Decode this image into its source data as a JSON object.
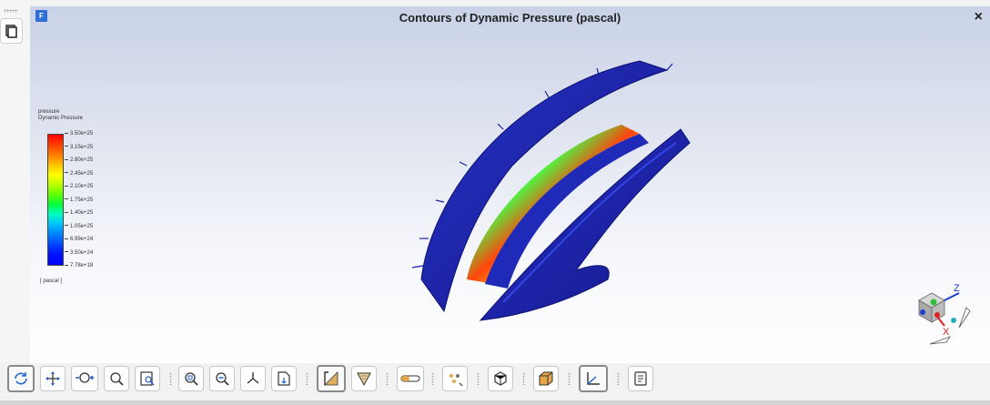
{
  "window": {
    "title": "Contours of Dynamic Pressure (pascal)",
    "app_icon_letter": "F",
    "close_symbol": "×"
  },
  "legend": {
    "variable": "pressure",
    "description": "Dynamic Pressure",
    "ticks": [
      "3.50e+25",
      "3.15e+25",
      "2.80e+25",
      "2.45e+25",
      "2.10e+25",
      "1.75e+25",
      "1.40e+25",
      "1.05e+25",
      "6.99e+24",
      "3.50e+24",
      "7.78e+18"
    ],
    "unit": "[ pascal ]"
  },
  "triad": {
    "axis_x": "X",
    "axis_z": "Z"
  },
  "toolbar": {
    "buttons": [
      {
        "name": "rotate-button",
        "icon": "rotate-icon",
        "active": true
      },
      {
        "name": "pan-button",
        "icon": "pan-icon",
        "active": false
      },
      {
        "name": "zoom-in-out-button",
        "icon": "zoom-in-out-icon",
        "active": false
      },
      {
        "name": "zoom-to-area-button",
        "icon": "zoom-area-icon",
        "active": false
      },
      {
        "name": "select-button",
        "icon": "select-icon",
        "active": false
      },
      {
        "name": "fit-to-window-button",
        "icon": "fit-window-icon",
        "active": false
      },
      {
        "name": "zoom-out-button",
        "icon": "zoom-out-icon",
        "active": false
      },
      {
        "name": "isometric-view-button",
        "icon": "isometric-icon",
        "active": false
      },
      {
        "name": "view-orientation-button",
        "icon": "view-orientation-icon",
        "active": false
      },
      {
        "name": "headlight-button",
        "icon": "headlight-icon",
        "active": true
      },
      {
        "name": "lighting-button",
        "icon": "lighting-icon",
        "active": false
      },
      {
        "name": "transparency-button",
        "icon": "transparency-icon",
        "active": false
      },
      {
        "name": "scene-options-button",
        "icon": "scene-options-icon",
        "active": false
      },
      {
        "name": "perspective-button",
        "icon": "cube-icon",
        "active": false
      },
      {
        "name": "mesh-display-button",
        "icon": "mesh-icon",
        "active": false
      },
      {
        "name": "axes-button",
        "icon": "axes-icon",
        "active": true
      },
      {
        "name": "annotation-button",
        "icon": "annotation-icon",
        "active": false
      }
    ]
  },
  "colors": {
    "accent": "#2f6fd6",
    "model_dark": "#1a1fa6",
    "model_mid": "#2430c8",
    "high_pressure": "#ff3b00"
  }
}
